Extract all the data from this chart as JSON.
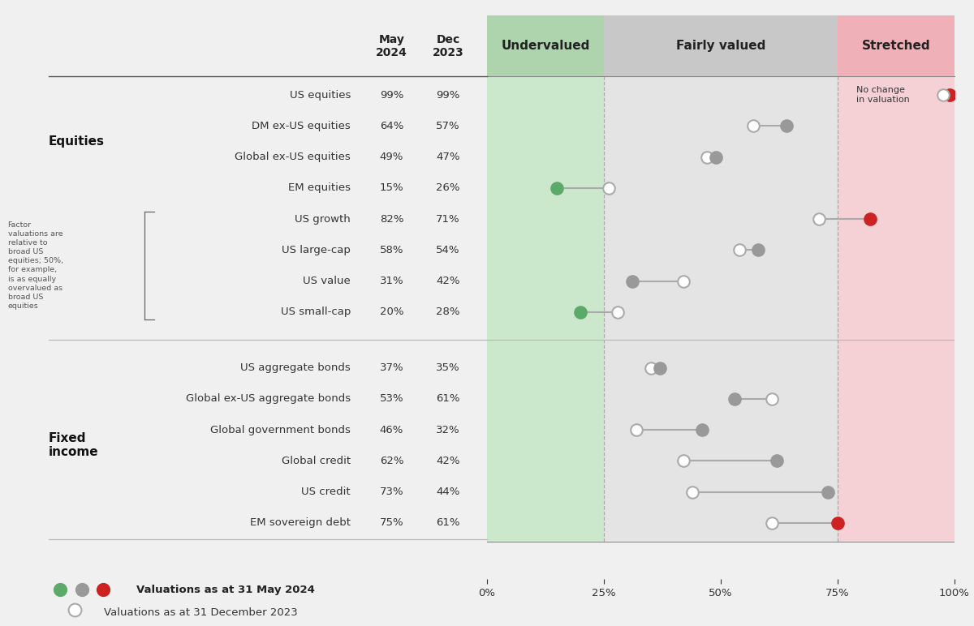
{
  "categories": [
    "US equities",
    "DM ex-US equities",
    "Global ex-US equities",
    "EM equities",
    "US growth",
    "US large-cap",
    "US value",
    "US small-cap",
    "US aggregate bonds",
    "Global ex-US aggregate bonds",
    "Global government bonds",
    "Global credit",
    "US credit",
    "EM sovereign debt"
  ],
  "may_2024": [
    99,
    64,
    49,
    15,
    82,
    58,
    31,
    20,
    37,
    53,
    46,
    62,
    73,
    75
  ],
  "dec_2023": [
    99,
    57,
    47,
    26,
    71,
    54,
    42,
    28,
    35,
    61,
    32,
    42,
    44,
    61
  ],
  "section_labels": [
    "Undervalued",
    "Fairly valued",
    "Stretched"
  ],
  "section_bounds": [
    0,
    25,
    75,
    100
  ],
  "section_body_colors": [
    "#cce8cc",
    "#e4e4e4",
    "#f5d0d4"
  ],
  "section_header_colors": [
    "#aed4ae",
    "#c8c8c8",
    "#efb0b8"
  ],
  "undervalued_color": "#5baa6a",
  "fairly_valued_color": "#999999",
  "stretched_color": "#cc2222",
  "bg_color": "#f0f0f0",
  "line_color": "#aaaaaa",
  "factor_text": "Factor\nvaluations are\nrelative to\nbroad US\nequities; 50%,\nfor example,\nis as equally\novervalued as\nbroad US\nequities"
}
